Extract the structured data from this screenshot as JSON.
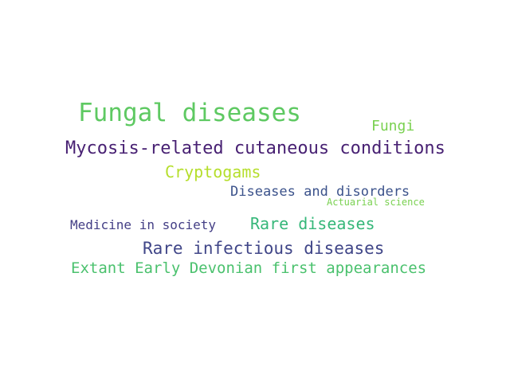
{
  "words": [
    {
      "text": "Fungal diseases",
      "color": "#5ec962"
    },
    {
      "text": "Fungi",
      "color": "#7ad151"
    },
    {
      "text": "Mycosis-related cutaneous conditions",
      "color": "#482173"
    },
    {
      "text": "Cryptogams",
      "color": "#b5de2b"
    },
    {
      "text": "Diseases and disorders",
      "color": "#3b528b"
    },
    {
      "text": "Actuarial science",
      "color": "#7ad151"
    },
    {
      "text": "Medicine in society",
      "color": "#433e85"
    },
    {
      "text": "Rare diseases",
      "color": "#35b779"
    },
    {
      "text": "Rare infectious diseases",
      "color": "#404688"
    },
    {
      "text": "Extant Early Devonian first appearances",
      "color": "#4ac16d"
    }
  ]
}
